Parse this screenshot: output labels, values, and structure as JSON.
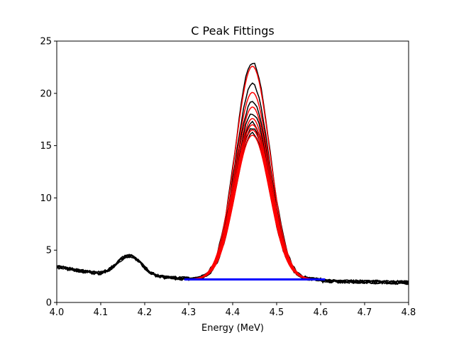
{
  "chart_data": {
    "type": "line",
    "title": "C Peak Fittings",
    "xlabel": "Energy (MeV)",
    "ylabel": "",
    "xlim": [
      4.0,
      4.8
    ],
    "ylim": [
      0,
      25
    ],
    "xticks": [
      "4.0",
      "4.1",
      "4.2",
      "4.3",
      "4.4",
      "4.5",
      "4.6",
      "4.7",
      "4.8"
    ],
    "yticks": [
      "0",
      "5",
      "10",
      "15",
      "20",
      "25"
    ],
    "grid": false,
    "legend": "none",
    "colors": {
      "measured": "#000000",
      "fit": "#ff0000",
      "baseline": "#0000ff"
    },
    "peak": {
      "center": 4.445,
      "sigma": 0.039,
      "fit_range": [
        4.3,
        4.6
      ]
    },
    "baseline": {
      "x": [
        4.29,
        4.61
      ],
      "y": [
        2.2,
        2.2
      ]
    },
    "spectrum_background": {
      "x": [
        4.0,
        4.05,
        4.1,
        4.15,
        4.2,
        4.25,
        4.3,
        4.4,
        4.5,
        4.6,
        4.65,
        4.7,
        4.8
      ],
      "y": [
        3.4,
        2.9,
        2.8,
        4.1,
        4.1,
        2.5,
        2.3,
        2.25,
        2.2,
        2.2,
        2.1,
        2.0,
        1.9
      ]
    },
    "series": [
      {
        "type": "measured",
        "peak_height": 23.0
      },
      {
        "type": "measured",
        "peak_height": 20.9
      },
      {
        "type": "measured",
        "peak_height": 19.2
      },
      {
        "type": "measured",
        "peak_height": 18.1
      },
      {
        "type": "measured",
        "peak_height": 17.2
      },
      {
        "type": "measured",
        "peak_height": 16.7
      },
      {
        "type": "measured",
        "peak_height": 16.2
      },
      {
        "type": "fit",
        "peak_height": 22.6
      },
      {
        "type": "fit",
        "peak_height": 20.1
      },
      {
        "type": "fit",
        "peak_height": 18.7
      },
      {
        "type": "fit",
        "peak_height": 17.6
      },
      {
        "type": "fit",
        "peak_height": 17.0
      },
      {
        "type": "fit",
        "peak_height": 16.5
      },
      {
        "type": "fit",
        "peak_height": 16.0
      }
    ]
  }
}
